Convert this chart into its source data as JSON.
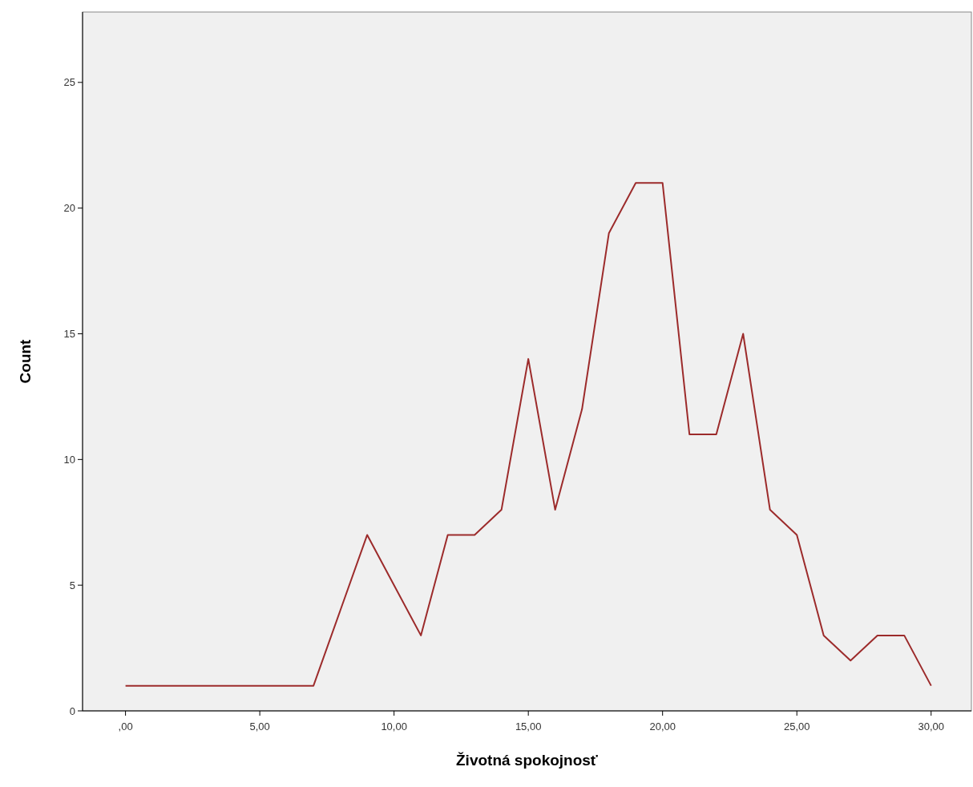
{
  "chart_data": {
    "type": "line",
    "xlabel": "Životná spokojnosť",
    "ylabel": "Count",
    "x": [
      0,
      1,
      2,
      3,
      4,
      5,
      6,
      7,
      8,
      9,
      10,
      11,
      12,
      13,
      14,
      15,
      16,
      17,
      18,
      19,
      20,
      21,
      22,
      23,
      24,
      25,
      26,
      27,
      28,
      29,
      30
    ],
    "series": [
      {
        "color": "#9c2b2b",
        "values": [
          1,
          1,
          1,
          1,
          1,
          1,
          1,
          1,
          4,
          7,
          5,
          3,
          7,
          7,
          8,
          14,
          8,
          12,
          19,
          21,
          21,
          11,
          11,
          15,
          8,
          7,
          3,
          2,
          3,
          3,
          1
        ]
      }
    ],
    "xlim": [
      -1.6,
      31.5
    ],
    "ylim": [
      0,
      27.8
    ],
    "xticks": [
      {
        "value": 0,
        "label": ",00"
      },
      {
        "value": 5,
        "label": "5,00"
      },
      {
        "value": 10,
        "label": "10,00"
      },
      {
        "value": 15,
        "label": "15,00"
      },
      {
        "value": 20,
        "label": "20,00"
      },
      {
        "value": 25,
        "label": "25,00"
      },
      {
        "value": 30,
        "label": "30,00"
      }
    ],
    "yticks": [
      0,
      5,
      10,
      15,
      20,
      25
    ],
    "grid": false,
    "marker": "none",
    "line_style": "solid"
  }
}
